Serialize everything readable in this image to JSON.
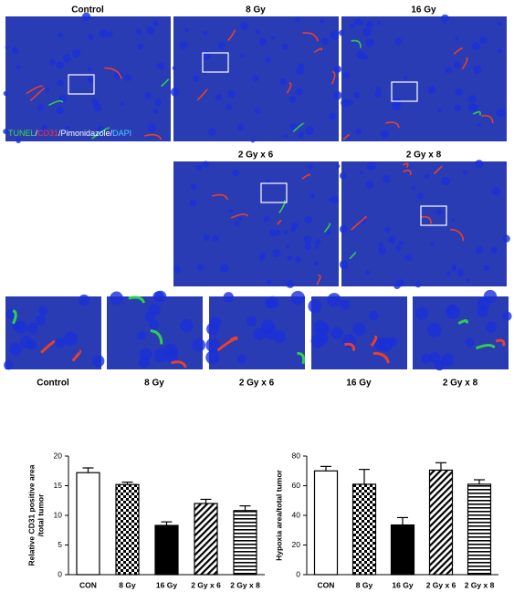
{
  "overview_labels": [
    "Control",
    "8 Gy",
    "16 Gy",
    "2 Gy x 6",
    "2 Gy x 8"
  ],
  "legend": [
    {
      "text": "TUNEL",
      "color": "#3ddc3d"
    },
    {
      "text": "/",
      "color": "#ffffff"
    },
    {
      "text": "CD31",
      "color": "#ff3030"
    },
    {
      "text": "/Pimonidazole/",
      "color": "#ffffff"
    },
    {
      "text": "DAPI",
      "color": "#40d0ff"
    }
  ],
  "zoom_labels": [
    "Control",
    "8 Gy",
    "2 Gy x 6",
    "16 Gy",
    "2 Gy x 8"
  ],
  "chart_data": [
    {
      "type": "bar",
      "y_label": [
        "Relative CD31 positive area",
        "/total tumor"
      ],
      "categories": [
        "CON",
        "8 Gy",
        "16 Gy",
        "2 Gy x 6",
        "2 Gy x 8"
      ],
      "values": [
        17.2,
        15.2,
        8.3,
        12,
        10.8
      ],
      "errors": [
        0.8,
        0.4,
        0.6,
        0.7,
        0.8
      ],
      "patterns": [
        "none",
        "checker",
        "solid",
        "diagonal",
        "horizontal"
      ],
      "ylim": [
        0,
        20
      ],
      "yticks": [
        0,
        5,
        10,
        15,
        20
      ]
    },
    {
      "type": "bar",
      "y_label": [
        "Hypoxia area/total tumor"
      ],
      "categories": [
        "CON",
        "8 Gy",
        "16 Gy",
        "2 Gy x 6",
        "2 Gy x 8"
      ],
      "values": [
        70,
        61,
        33.5,
        70.5,
        61
      ],
      "errors": [
        3,
        10,
        5,
        5,
        3
      ],
      "patterns": [
        "none",
        "checker",
        "solid",
        "diagonal",
        "horizontal"
      ],
      "ylim": [
        0,
        80
      ],
      "yticks": [
        0,
        20,
        40,
        60,
        80
      ]
    }
  ]
}
